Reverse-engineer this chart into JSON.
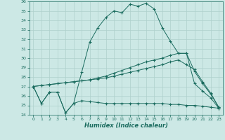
{
  "xlabel": "Humidex (Indice chaleur)",
  "bg_color": "#cce8e5",
  "line_color": "#1a6b5e",
  "grid_color": "#aed0cc",
  "xlim": [
    -0.5,
    23.5
  ],
  "ylim": [
    24,
    36
  ],
  "xticks": [
    0,
    1,
    2,
    3,
    4,
    5,
    6,
    7,
    8,
    9,
    10,
    11,
    12,
    13,
    14,
    15,
    16,
    17,
    18,
    19,
    20,
    21,
    22,
    23
  ],
  "yticks": [
    24,
    25,
    26,
    27,
    28,
    29,
    30,
    31,
    32,
    33,
    34,
    35,
    36
  ],
  "series": [
    [
      27.0,
      25.2,
      26.4,
      26.4,
      24.2,
      25.2,
      28.5,
      31.7,
      33.2,
      34.3,
      35.0,
      34.8,
      35.7,
      35.5,
      35.8,
      35.2,
      33.2,
      31.8,
      30.5,
      30.5,
      28.6,
      27.3,
      26.2,
      24.8
    ],
    [
      27.0,
      25.2,
      26.4,
      26.4,
      24.2,
      25.2,
      25.5,
      25.4,
      25.3,
      25.2,
      25.2,
      25.2,
      25.2,
      25.2,
      25.2,
      25.2,
      25.2,
      25.1,
      25.1,
      25.0,
      25.0,
      24.9,
      24.8,
      24.7
    ],
    [
      27.0,
      27.1,
      27.2,
      27.3,
      27.4,
      27.5,
      27.6,
      27.7,
      27.8,
      27.9,
      28.1,
      28.3,
      28.5,
      28.7,
      28.9,
      29.1,
      29.3,
      29.6,
      29.8,
      29.3,
      28.8,
      27.5,
      26.3,
      24.8
    ],
    [
      27.0,
      27.1,
      27.2,
      27.3,
      27.4,
      27.5,
      27.6,
      27.7,
      27.9,
      28.1,
      28.4,
      28.7,
      29.0,
      29.3,
      29.6,
      29.8,
      30.0,
      30.3,
      30.5,
      30.5,
      27.3,
      26.5,
      25.8,
      24.7
    ]
  ]
}
